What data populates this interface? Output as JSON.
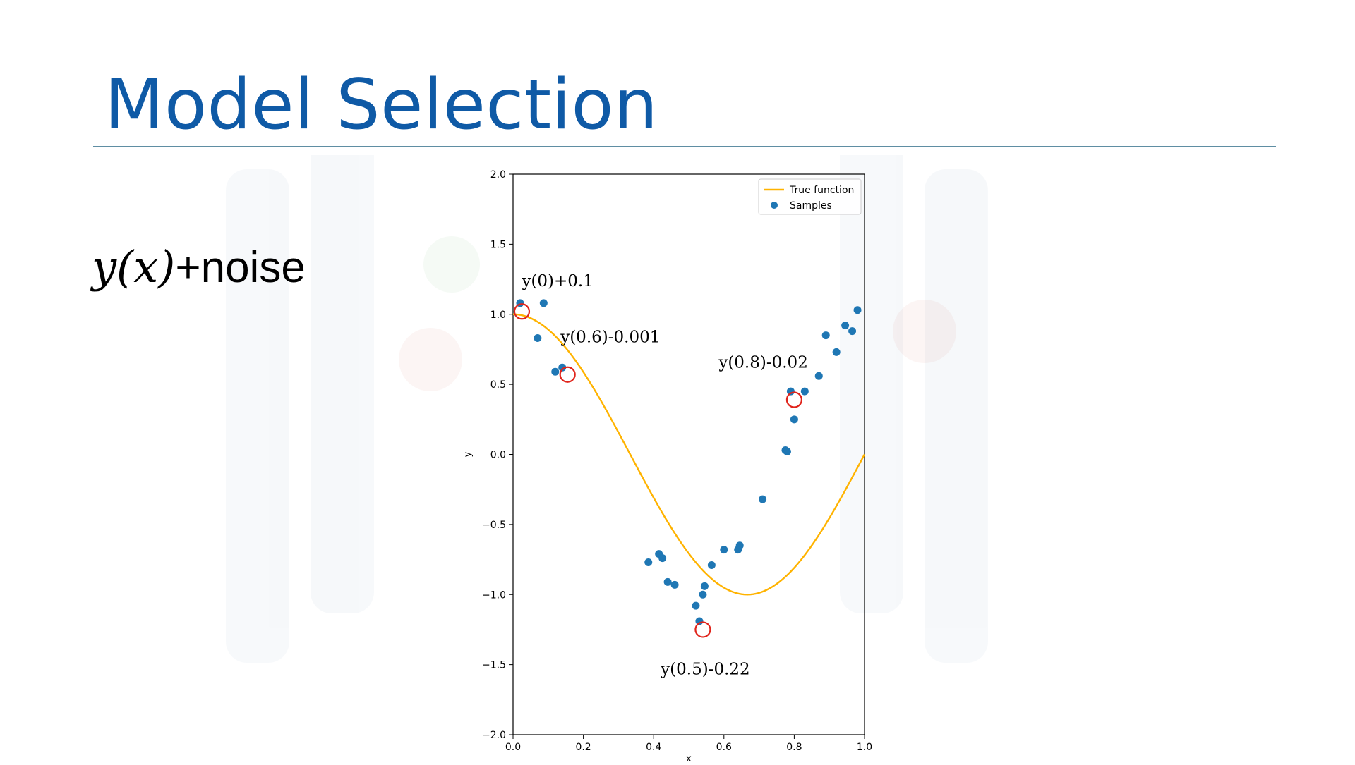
{
  "slide": {
    "title": "Model Selection",
    "formula": {
      "math": "y(x)",
      "text": "+noise"
    }
  },
  "colors": {
    "title": "#0f5aa6",
    "rule": "#5f8ea3",
    "true_function": "#ffb300",
    "samples": "#1f77b4",
    "highlight_circle": "#e0241b"
  },
  "chart_data": {
    "type": "scatter",
    "title": "",
    "xlabel": "x",
    "ylabel": "y",
    "xlim": [
      0.0,
      1.0
    ],
    "ylim": [
      -2.0,
      2.0
    ],
    "xticks": [
      0.0,
      0.2,
      0.4,
      0.6,
      0.8,
      1.0
    ],
    "xtick_labels": [
      "0.0",
      "0.2",
      "0.4",
      "0.6",
      "0.8",
      "1.0"
    ],
    "yticks": [
      -2.0,
      -1.5,
      -1.0,
      -0.5,
      0.0,
      0.5,
      1.0,
      1.5,
      2.0
    ],
    "ytick_labels": [
      "−2.0",
      "−1.5",
      "−1.0",
      "−0.5",
      "0.0",
      "0.5",
      "1.0",
      "1.5",
      "2.0"
    ],
    "grid": false,
    "legend_position": "top-right",
    "legend": [
      {
        "label": "True function",
        "kind": "line"
      },
      {
        "label": "Samples",
        "kind": "marker"
      }
    ],
    "true_function": "cos(1.5*pi*x)",
    "samples": {
      "x": [
        0.02,
        0.07,
        0.087,
        0.12,
        0.14,
        0.385,
        0.415,
        0.425,
        0.44,
        0.46,
        0.52,
        0.53,
        0.54,
        0.545,
        0.565,
        0.6,
        0.64,
        0.645,
        0.71,
        0.775,
        0.78,
        0.79,
        0.8,
        0.83,
        0.87,
        0.89,
        0.92,
        0.945,
        0.965,
        0.98
      ],
      "y": [
        1.08,
        0.83,
        1.08,
        0.59,
        0.62,
        -0.77,
        -0.71,
        -0.74,
        -0.91,
        -0.93,
        -1.08,
        -1.19,
        -1.0,
        -0.94,
        -0.79,
        -0.68,
        -0.68,
        -0.65,
        -0.32,
        0.03,
        0.02,
        0.45,
        0.25,
        0.45,
        0.56,
        0.85,
        0.73,
        0.92,
        0.88,
        1.03
      ]
    },
    "highlights": [
      {
        "x": 0.025,
        "y": 1.02,
        "label": "y(0)+0.1",
        "label_x": 0.025,
        "label_y": 1.2
      },
      {
        "x": 0.155,
        "y": 0.57,
        "label": "y(0.6)-0.001",
        "label_x": 0.135,
        "label_y": 0.8
      },
      {
        "x": 0.54,
        "y": -1.25,
        "label": "y(0.5)-0.22",
        "label_x": 0.42,
        "label_y": -1.57
      },
      {
        "x": 0.8,
        "y": 0.39,
        "label": "y(0.8)-0.02",
        "label_x": 0.585,
        "label_y": 0.62
      }
    ]
  }
}
